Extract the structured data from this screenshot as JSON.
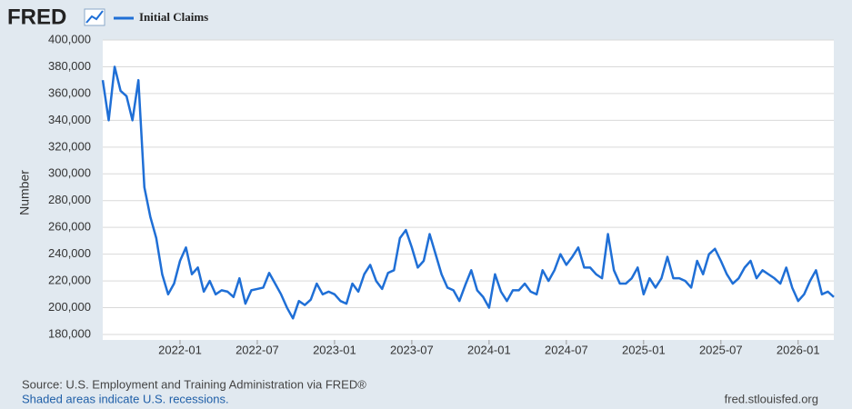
{
  "logo": "FRED",
  "footer": {
    "source": "Source: U.S. Employment and Training Administration via FRED®",
    "recessions": "Shaded areas indicate U.S. recessions.",
    "site": "fred.stlouisfed.org"
  },
  "chart_data": {
    "type": "line",
    "ylabel": "Number",
    "legend": "top-left",
    "grid": true,
    "categories": [
      null,
      null,
      null,
      null,
      null,
      null,
      null,
      null,
      null,
      null,
      null,
      null,
      null,
      "2022-01",
      null,
      null,
      null,
      null,
      null,
      null,
      null,
      null,
      null,
      null,
      null,
      null,
      "2022-07",
      null,
      null,
      null,
      null,
      null,
      null,
      null,
      null,
      null,
      null,
      null,
      null,
      "2023-01",
      null,
      null,
      null,
      null,
      null,
      null,
      null,
      null,
      null,
      null,
      null,
      null,
      "2023-07",
      null,
      null,
      null,
      null,
      null,
      null,
      null,
      null,
      null,
      null,
      null,
      null,
      "2024-01",
      null,
      null,
      null,
      null,
      null,
      null,
      null,
      null,
      null,
      null,
      null,
      null,
      "2024-07",
      null,
      null,
      null,
      null,
      null,
      null,
      null,
      null,
      null,
      null,
      null,
      null,
      "2025-01",
      null,
      null,
      null,
      null,
      null,
      null,
      null,
      null,
      null,
      null,
      null,
      null,
      "2025-07",
      null,
      null,
      null,
      null,
      null,
      null,
      null,
      null,
      null,
      null,
      null,
      null,
      "2026-01",
      null,
      null,
      null,
      null,
      null,
      null
    ],
    "series": [
      {
        "name": "Initial Claims",
        "color": "#1f6fd6",
        "values": [
          370000,
          340000,
          380000,
          362000,
          358000,
          340000,
          370000,
          290000,
          268000,
          252000,
          225000,
          210000,
          218000,
          235000,
          245000,
          225000,
          230000,
          212000,
          220000,
          210000,
          213000,
          212000,
          208000,
          222000,
          203000,
          213000,
          214000,
          215000,
          226000,
          218000,
          210000,
          200000,
          192000,
          205000,
          202000,
          206000,
          218000,
          210000,
          212000,
          210000,
          205000,
          203000,
          218000,
          212000,
          225000,
          232000,
          220000,
          214000,
          226000,
          228000,
          252000,
          258000,
          245000,
          230000,
          235000,
          255000,
          240000,
          225000,
          215000,
          213000,
          205000,
          217000,
          228000,
          213000,
          208000,
          200000,
          225000,
          212000,
          205000,
          213000,
          213000,
          218000,
          212000,
          210000,
          228000,
          220000,
          228000,
          240000,
          232000,
          238000,
          245000,
          230000,
          230000,
          225000,
          222000,
          255000,
          228000,
          218000,
          218000,
          222000,
          230000,
          210000,
          222000,
          215000,
          222000,
          238000,
          222000,
          222000,
          220000,
          215000,
          235000,
          225000,
          240000,
          244000,
          235000,
          225000,
          218000,
          222000,
          230000,
          235000,
          222000,
          228000,
          225000,
          222000,
          218000,
          230000,
          215000,
          205000,
          210000,
          220000,
          228000,
          210000,
          212000,
          208000
        ]
      }
    ],
    "ylim": [
      180000,
      400000
    ],
    "yticks": [
      {
        "value": 180000,
        "label": "180,000"
      },
      {
        "value": 200000,
        "label": "200,000"
      },
      {
        "value": 220000,
        "label": "220,000"
      },
      {
        "value": 240000,
        "label": "240,000"
      },
      {
        "value": 260000,
        "label": "260,000"
      },
      {
        "value": 280000,
        "label": "280,000"
      },
      {
        "value": 300000,
        "label": "300,000"
      },
      {
        "value": 320000,
        "label": "320,000"
      },
      {
        "value": 340000,
        "label": "340,000"
      },
      {
        "value": 360000,
        "label": "360,000"
      },
      {
        "value": 380000,
        "label": "380,000"
      },
      {
        "value": 400000,
        "label": "400,000"
      }
    ]
  }
}
